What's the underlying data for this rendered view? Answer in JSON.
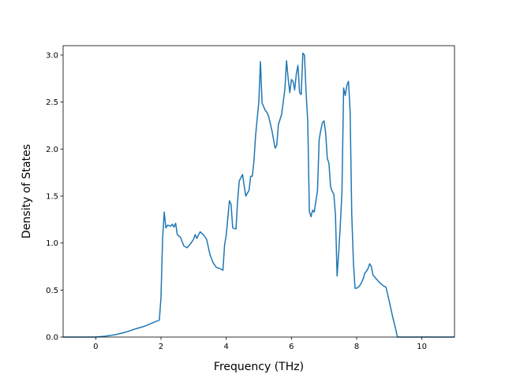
{
  "chart_data": {
    "type": "line",
    "title": "",
    "xlabel": "Frequency (THz)",
    "ylabel": "Density of States",
    "xlim": [
      -1.0,
      11.0
    ],
    "ylim": [
      0.0,
      3.1
    ],
    "grid": false,
    "legend": "none",
    "xticks": [
      0,
      2,
      4,
      6,
      8,
      10
    ],
    "xtick_labels": [
      "0",
      "2",
      "4",
      "6",
      "8",
      "10"
    ],
    "yticks": [
      0.0,
      0.5,
      1.0,
      1.5,
      2.0,
      2.5,
      3.0
    ],
    "ytick_labels": [
      "0.0",
      "0.5",
      "1.0",
      "1.5",
      "2.0",
      "2.5",
      "3.0"
    ],
    "series": [
      {
        "color": "#1f77b4",
        "x": [
          -1.0,
          -0.5,
          0.0,
          0.3,
          0.6,
          0.9,
          1.2,
          1.5,
          1.8,
          1.95,
          2.0,
          2.05,
          2.1,
          2.15,
          2.2,
          2.3,
          2.35,
          2.4,
          2.45,
          2.5,
          2.6,
          2.7,
          2.8,
          2.9,
          3.0,
          3.05,
          3.1,
          3.2,
          3.3,
          3.4,
          3.5,
          3.6,
          3.7,
          3.8,
          3.9,
          3.95,
          4.0,
          4.05,
          4.1,
          4.15,
          4.2,
          4.3,
          4.35,
          4.4,
          4.5,
          4.6,
          4.7,
          4.75,
          4.8,
          4.85,
          4.9,
          5.0,
          5.05,
          5.1,
          5.2,
          5.25,
          5.3,
          5.4,
          5.5,
          5.55,
          5.6,
          5.7,
          5.8,
          5.85,
          5.9,
          5.95,
          6.0,
          6.05,
          6.1,
          6.15,
          6.2,
          6.25,
          6.3,
          6.35,
          6.4,
          6.45,
          6.5,
          6.55,
          6.6,
          6.65,
          6.7,
          6.8,
          6.85,
          6.9,
          6.95,
          7.0,
          7.05,
          7.1,
          7.15,
          7.2,
          7.25,
          7.3,
          7.35,
          7.4,
          7.45,
          7.5,
          7.55,
          7.6,
          7.65,
          7.7,
          7.75,
          7.8,
          7.85,
          7.9,
          7.95,
          8.0,
          8.05,
          8.1,
          8.15,
          8.2,
          8.25,
          8.3,
          8.35,
          8.4,
          8.45,
          8.5,
          8.6,
          8.7,
          8.8,
          8.9,
          9.0,
          9.1,
          9.2,
          9.25,
          9.3,
          9.4,
          9.5,
          9.6,
          9.7,
          9.75,
          9.8,
          9.85,
          9.9,
          9.95,
          10.0,
          10.5,
          11.0
        ],
        "y": [
          0.0,
          0.0,
          0.0,
          0.01,
          0.025,
          0.05,
          0.085,
          0.115,
          0.16,
          0.18,
          0.42,
          1.05,
          1.33,
          1.16,
          1.19,
          1.18,
          1.2,
          1.17,
          1.21,
          1.09,
          1.06,
          0.97,
          0.95,
          0.99,
          1.04,
          1.09,
          1.05,
          1.12,
          1.09,
          1.04,
          0.88,
          0.79,
          0.74,
          0.73,
          0.71,
          0.98,
          1.08,
          1.27,
          1.45,
          1.41,
          1.16,
          1.15,
          1.45,
          1.66,
          1.73,
          1.5,
          1.56,
          1.71,
          1.71,
          1.87,
          2.14,
          2.5,
          2.93,
          2.49,
          2.41,
          2.39,
          2.35,
          2.2,
          2.01,
          2.04,
          2.26,
          2.37,
          2.64,
          2.94,
          2.75,
          2.6,
          2.74,
          2.72,
          2.63,
          2.8,
          2.89,
          2.6,
          2.58,
          3.02,
          3.0,
          2.6,
          2.3,
          1.34,
          1.28,
          1.35,
          1.33,
          1.56,
          2.1,
          2.2,
          2.28,
          2.3,
          2.17,
          1.9,
          1.85,
          1.6,
          1.55,
          1.52,
          1.3,
          0.65,
          0.9,
          1.2,
          1.55,
          2.65,
          2.57,
          2.68,
          2.72,
          2.4,
          1.3,
          0.8,
          0.52,
          0.52,
          0.53,
          0.55,
          0.58,
          0.62,
          0.68,
          0.7,
          0.73,
          0.78,
          0.75,
          0.66,
          0.62,
          0.58,
          0.55,
          0.53,
          0.38,
          0.22,
          0.08,
          0.0,
          0.0,
          0.0,
          0.0,
          0.0,
          0.0,
          0.0,
          0.0,
          0.0,
          0.0,
          0.0,
          0.0,
          0.0,
          0.0
        ]
      }
    ]
  }
}
